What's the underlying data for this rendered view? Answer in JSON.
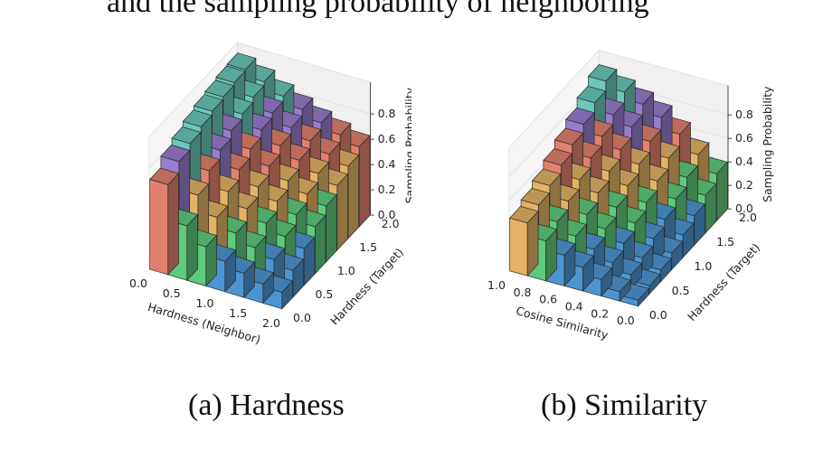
{
  "header_fragment": "and the sampling probability of neighboring",
  "captions": [
    "(a) Hardness",
    "(b) Similarity"
  ],
  "colors": {
    "band1": "#4f98d6",
    "band2": "#5fcf7c",
    "band3": "#e9b668",
    "band4": "#e6846f",
    "band5": "#9b7fd2",
    "band6": "#6ccbbd"
  },
  "chart_data": [
    {
      "type": "bar3d",
      "panel_label": "(a) Hardness",
      "xlabel": "Hardness (Neighbor)",
      "ylabel": "Hardness (Target)",
      "zlabel": "Sampling Probability",
      "x_ticks": [
        "0.0",
        "0.5",
        "1.0",
        "1.5",
        "2.0"
      ],
      "y_ticks": [
        "0.0",
        "0.5",
        "1.0",
        "1.5",
        "2.0"
      ],
      "z_ticks": [
        "0.0",
        "0.2",
        "0.4",
        "0.6",
        "0.8"
      ],
      "xlim": [
        0,
        2
      ],
      "ylim": [
        0,
        2
      ],
      "zlim": [
        0,
        1
      ],
      "x_values": [
        0,
        0.3,
        0.6,
        0.9,
        1.2,
        1.5,
        1.8
      ],
      "y_values": [
        0,
        0.3,
        0.6,
        0.9,
        1.2,
        1.5,
        1.8,
        2.0
      ],
      "values": [
        [
          0.71,
          0.43,
          0.31,
          0.24,
          0.19,
          0.15,
          0.13
        ],
        [
          0.8,
          0.58,
          0.45,
          0.37,
          0.3,
          0.25,
          0.21
        ],
        [
          0.85,
          0.68,
          0.56,
          0.47,
          0.4,
          0.34,
          0.29
        ],
        [
          0.89,
          0.75,
          0.64,
          0.55,
          0.48,
          0.42,
          0.37
        ],
        [
          0.92,
          0.81,
          0.71,
          0.62,
          0.55,
          0.49,
          0.44
        ],
        [
          0.94,
          0.85,
          0.77,
          0.69,
          0.62,
          0.56,
          0.51
        ],
        [
          0.96,
          0.89,
          0.81,
          0.74,
          0.68,
          0.62,
          0.57
        ],
        [
          0.97,
          0.92,
          0.85,
          0.79,
          0.73,
          0.68,
          0.63
        ]
      ]
    },
    {
      "type": "bar3d",
      "panel_label": "(b) Similarity",
      "xlabel": "Cosine Similarity",
      "ylabel": "Hardness (Target)",
      "zlabel": "Sampling Probability",
      "x_ticks": [
        "1.0",
        "0.8",
        "0.6",
        "0.4",
        "0.2",
        "0.0"
      ],
      "y_ticks": [
        "0.0",
        "0.5",
        "1.0",
        "1.5",
        "2.0"
      ],
      "z_ticks": [
        "0.0",
        "0.2",
        "0.4",
        "0.6",
        "0.8"
      ],
      "xlim": [
        1,
        0
      ],
      "ylim": [
        0,
        2
      ],
      "zlim": [
        0,
        1
      ],
      "x_values": [
        1.0,
        0.85,
        0.7,
        0.55,
        0.4,
        0.25,
        0.1
      ],
      "y_values": [
        0,
        0.3,
        0.6,
        0.9,
        1.2,
        1.5,
        1.8,
        2.0
      ],
      "values": [
        [
          0.45,
          0.34,
          0.26,
          0.2,
          0.14,
          0.08,
          0.05
        ],
        [
          0.5,
          0.4,
          0.32,
          0.25,
          0.18,
          0.12,
          0.07
        ],
        [
          0.56,
          0.47,
          0.4,
          0.32,
          0.24,
          0.16,
          0.1
        ],
        [
          0.63,
          0.55,
          0.48,
          0.4,
          0.31,
          0.22,
          0.14
        ],
        [
          0.7,
          0.63,
          0.56,
          0.48,
          0.38,
          0.28,
          0.19
        ],
        [
          0.77,
          0.71,
          0.64,
          0.56,
          0.46,
          0.35,
          0.25
        ],
        [
          0.85,
          0.79,
          0.73,
          0.65,
          0.55,
          0.43,
          0.32
        ],
        [
          0.93,
          0.88,
          0.82,
          0.75,
          0.65,
          0.52,
          0.4
        ]
      ]
    }
  ]
}
